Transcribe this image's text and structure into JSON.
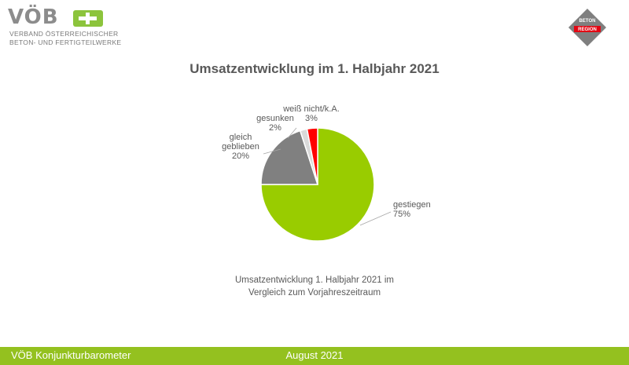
{
  "logo": {
    "word": "VÖB",
    "line1": "VERBAND ÖSTERREICHISCHER",
    "line2": "BETON- UND FERTIGTEILWERKE",
    "badge_line1": "BETON",
    "badge_line2": "REGION"
  },
  "colors": {
    "accent": "#94c11f"
  },
  "chart_data": {
    "type": "pie",
    "title": "Umsatzentwicklung im 1. Halbjahr 2021",
    "caption_lines": [
      "Umsatzentwicklung 1. Halbjahr 2021 im",
      "Vergleich zum Vorjahreszeitraum"
    ],
    "slices": [
      {
        "name": "gestiegen",
        "value": 75,
        "label_lines": [
          "gestiegen",
          "75%"
        ],
        "color": "#99cc00"
      },
      {
        "name": "gleich geblieben",
        "value": 20,
        "label_lines": [
          "gleich",
          "geblieben",
          "20%"
        ],
        "color": "#808080"
      },
      {
        "name": "gesunken",
        "value": 2,
        "label_lines": [
          "gesunken",
          "2%"
        ],
        "color": "#d9d9d9"
      },
      {
        "name": "weiß nicht/k.A.",
        "value": 3,
        "label_lines": [
          "weiß nicht/k.A.",
          "3%"
        ],
        "color": "#ff0000"
      }
    ]
  },
  "footer": {
    "left": "VÖB Konjunkturbarometer",
    "center": "August 2021"
  }
}
